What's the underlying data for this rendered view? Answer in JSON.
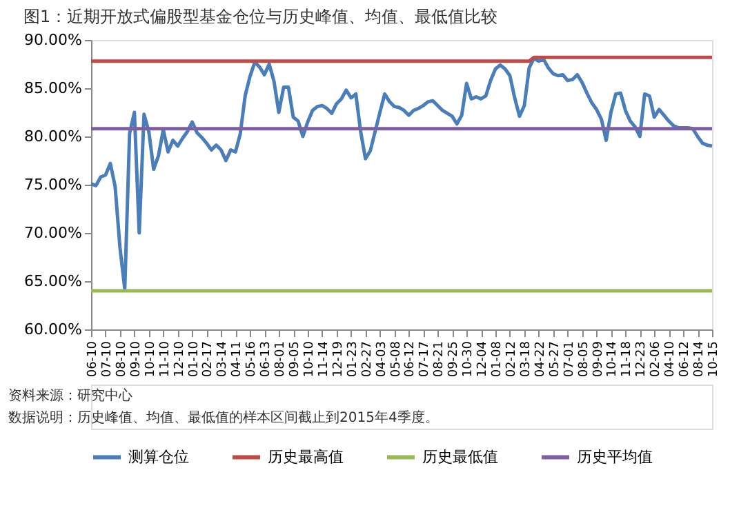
{
  "chart_data": {
    "type": "line",
    "title": "图1：近期开放式偏股型基金仓位与历史峰值、均值、最低值比较",
    "categories": [
      "06-10",
      null,
      null,
      "07-10",
      null,
      null,
      "08-10",
      null,
      null,
      "09-10",
      null,
      null,
      "10-10",
      null,
      null,
      "11-10",
      null,
      null,
      "12-10",
      null,
      null,
      "01-10",
      null,
      null,
      "02-17",
      null,
      null,
      "03-14",
      null,
      null,
      "04-11",
      null,
      null,
      "05-16",
      null,
      null,
      "06-13",
      null,
      null,
      "08-01",
      null,
      null,
      "09-05",
      null,
      null,
      "10-10",
      null,
      null,
      "11-14",
      null,
      null,
      "12-19",
      null,
      null,
      "01-23",
      null,
      null,
      "02-27",
      null,
      null,
      "04-03",
      null,
      null,
      "05-08",
      null,
      null,
      "06-12",
      null,
      null,
      "07-17",
      null,
      null,
      "08-21",
      null,
      null,
      "09-25",
      null,
      null,
      "10-30",
      null,
      null,
      "12-04",
      null,
      null,
      "01-08",
      null,
      null,
      "02-12",
      null,
      null,
      "03-18",
      null,
      null,
      "04-22",
      null,
      null,
      "05-27",
      null,
      null,
      "07-01",
      null,
      null,
      "08-05",
      null,
      null,
      "09-09",
      null,
      null,
      "10-14",
      null,
      null,
      "11-18",
      null,
      null,
      "12-23",
      null,
      null,
      "02-06",
      null,
      null,
      "04-10",
      null,
      null,
      "06-12",
      null,
      null,
      "08-14",
      null,
      null,
      "10-15"
    ],
    "ylim": [
      60,
      90
    ],
    "yticks": [
      {
        "value": 60,
        "label": "60.00%"
      },
      {
        "value": 65,
        "label": "65.00%"
      },
      {
        "value": 70,
        "label": "70.00%"
      },
      {
        "value": 75,
        "label": "75.00%"
      },
      {
        "value": 80,
        "label": "80.00%"
      },
      {
        "value": 85,
        "label": "85.00%"
      },
      {
        "value": 90,
        "label": "90.00%"
      }
    ],
    "grid": false,
    "legend": "bottom",
    "marker": "none",
    "line_style": "solid",
    "series": [
      {
        "name": "测算仓位",
        "color": "#4a7ebb",
        "values": [
          75.1,
          74.9,
          75.8,
          76.0,
          77.2,
          74.8,
          68.5,
          64.2,
          80.3,
          82.5,
          70.0,
          82.3,
          80.5,
          76.6,
          78.0,
          80.7,
          78.4,
          79.6,
          79.0,
          79.8,
          80.5,
          81.5,
          80.4,
          79.9,
          79.3,
          78.6,
          79.1,
          78.6,
          77.5,
          78.6,
          78.4,
          80.3,
          84.2,
          86.2,
          87.7,
          87.2,
          86.4,
          87.5,
          85.7,
          82.5,
          85.1,
          85.1,
          82.0,
          81.6,
          80.0,
          81.5,
          82.7,
          83.1,
          83.2,
          82.9,
          82.4,
          83.4,
          83.9,
          84.8,
          84.0,
          84.4,
          80.5,
          77.7,
          78.5,
          80.5,
          82.5,
          84.4,
          83.6,
          83.1,
          83.0,
          82.7,
          82.2,
          82.7,
          82.9,
          83.2,
          83.6,
          83.7,
          83.2,
          82.7,
          82.4,
          82.1,
          81.3,
          82.2,
          85.5,
          83.9,
          84.1,
          83.9,
          84.2,
          85.8,
          87.0,
          87.4,
          87.0,
          86.3,
          84.0,
          82.1,
          83.2,
          87.1,
          88.1,
          87.8,
          88.0,
          87.1,
          86.5,
          86.3,
          86.4,
          85.8,
          85.9,
          86.4,
          85.6,
          84.5,
          83.5,
          82.8,
          81.8,
          79.6,
          82.5,
          84.4,
          84.5,
          82.7,
          81.6,
          81.0,
          80.0,
          84.4,
          84.2,
          82.0,
          82.8,
          82.2,
          81.6,
          81.1,
          80.9,
          80.9,
          80.9,
          80.8,
          80.0,
          79.3,
          79.1,
          79.0
        ]
      },
      {
        "name": "历史最高值",
        "color": "#be4b48",
        "values": [
          87.8,
          87.8,
          87.8,
          87.8,
          87.8,
          87.8,
          87.8,
          87.8,
          87.8,
          87.8,
          87.8,
          87.8,
          87.8,
          87.8,
          87.8,
          87.8,
          87.8,
          87.8,
          87.8,
          87.8,
          87.8,
          87.8,
          87.8,
          87.8,
          87.8,
          87.8,
          87.8,
          87.8,
          87.8,
          87.8,
          87.8,
          87.8,
          87.8,
          87.8,
          87.8,
          87.8,
          87.8,
          87.8,
          87.8,
          87.8,
          87.8,
          87.8,
          87.8,
          87.8,
          87.8,
          87.8,
          87.8,
          87.8,
          87.8,
          87.8,
          87.8,
          87.8,
          87.8,
          87.8,
          87.8,
          87.8,
          87.8,
          87.8,
          87.8,
          87.8,
          87.8,
          87.8,
          87.8,
          87.8,
          87.8,
          87.8,
          87.8,
          87.8,
          87.8,
          87.8,
          87.8,
          87.8,
          87.8,
          87.8,
          87.8,
          87.8,
          87.8,
          87.8,
          87.8,
          87.8,
          87.8,
          87.8,
          87.8,
          87.8,
          87.8,
          87.8,
          87.8,
          87.8,
          87.8,
          87.8,
          87.8,
          87.8,
          88.2,
          88.2,
          88.2,
          88.2,
          88.2,
          88.2,
          88.2,
          88.2,
          88.2,
          88.2,
          88.2,
          88.2,
          88.2,
          88.2,
          88.2,
          88.2,
          88.2,
          88.2,
          88.2,
          88.2,
          88.2,
          88.2,
          88.2,
          88.2,
          88.2,
          88.2,
          88.2,
          88.2,
          88.2,
          88.2,
          88.2,
          88.2,
          88.2,
          88.2,
          88.2,
          88.2,
          88.2,
          88.2
        ]
      },
      {
        "name": "历史最低值",
        "color": "#98b954",
        "values": [
          64.0,
          64.0,
          64.0,
          64.0,
          64.0,
          64.0,
          64.0,
          64.0,
          64.0,
          64.0,
          64.0,
          64.0,
          64.0,
          64.0,
          64.0,
          64.0,
          64.0,
          64.0,
          64.0,
          64.0,
          64.0,
          64.0,
          64.0,
          64.0,
          64.0,
          64.0,
          64.0,
          64.0,
          64.0,
          64.0,
          64.0,
          64.0,
          64.0,
          64.0,
          64.0,
          64.0,
          64.0,
          64.0,
          64.0,
          64.0,
          64.0,
          64.0,
          64.0,
          64.0,
          64.0,
          64.0,
          64.0,
          64.0,
          64.0,
          64.0,
          64.0,
          64.0,
          64.0,
          64.0,
          64.0,
          64.0,
          64.0,
          64.0,
          64.0,
          64.0,
          64.0,
          64.0,
          64.0,
          64.0,
          64.0,
          64.0,
          64.0,
          64.0,
          64.0,
          64.0,
          64.0,
          64.0,
          64.0,
          64.0,
          64.0,
          64.0,
          64.0,
          64.0,
          64.0,
          64.0,
          64.0,
          64.0,
          64.0,
          64.0,
          64.0,
          64.0,
          64.0,
          64.0,
          64.0,
          64.0,
          64.0,
          64.0,
          64.0,
          64.0,
          64.0,
          64.0,
          64.0,
          64.0,
          64.0,
          64.0,
          64.0,
          64.0,
          64.0,
          64.0,
          64.0,
          64.0,
          64.0,
          64.0,
          64.0,
          64.0,
          64.0,
          64.0,
          64.0,
          64.0,
          64.0,
          64.0,
          64.0,
          64.0,
          64.0,
          64.0,
          64.0,
          64.0,
          64.0,
          64.0,
          64.0,
          64.0,
          64.0,
          64.0,
          64.0,
          64.0
        ]
      },
      {
        "name": "历史平均值",
        "color": "#7d60a0",
        "values": [
          80.8,
          80.8,
          80.8,
          80.8,
          80.8,
          80.8,
          80.8,
          80.8,
          80.8,
          80.8,
          80.8,
          80.8,
          80.8,
          80.8,
          80.8,
          80.8,
          80.8,
          80.8,
          80.8,
          80.8,
          80.8,
          80.8,
          80.8,
          80.8,
          80.8,
          80.8,
          80.8,
          80.8,
          80.8,
          80.8,
          80.8,
          80.8,
          80.8,
          80.8,
          80.8,
          80.8,
          80.8,
          80.8,
          80.8,
          80.8,
          80.8,
          80.8,
          80.8,
          80.8,
          80.8,
          80.8,
          80.8,
          80.8,
          80.8,
          80.8,
          80.8,
          80.8,
          80.8,
          80.8,
          80.8,
          80.8,
          80.8,
          80.8,
          80.8,
          80.8,
          80.8,
          80.8,
          80.8,
          80.8,
          80.8,
          80.8,
          80.8,
          80.8,
          80.8,
          80.8,
          80.8,
          80.8,
          80.8,
          80.8,
          80.8,
          80.8,
          80.8,
          80.8,
          80.8,
          80.8,
          80.8,
          80.8,
          80.8,
          80.8,
          80.8,
          80.8,
          80.8,
          80.8,
          80.8,
          80.8,
          80.8,
          80.8,
          80.8,
          80.8,
          80.8,
          80.8,
          80.8,
          80.8,
          80.8,
          80.8,
          80.8,
          80.8,
          80.8,
          80.8,
          80.8,
          80.8,
          80.8,
          80.8,
          80.8,
          80.8,
          80.8,
          80.8,
          80.8,
          80.8,
          80.8,
          80.8,
          80.8,
          80.8,
          80.8,
          80.8,
          80.8,
          80.8,
          80.8,
          80.8,
          80.8,
          80.8,
          80.8,
          80.8,
          80.8,
          80.8
        ]
      }
    ],
    "annotations": [
      "资料来源：研究中心",
      "数据说明：历史峰值、均值、最低值的样本区间截止到2015年4季度。"
    ]
  }
}
